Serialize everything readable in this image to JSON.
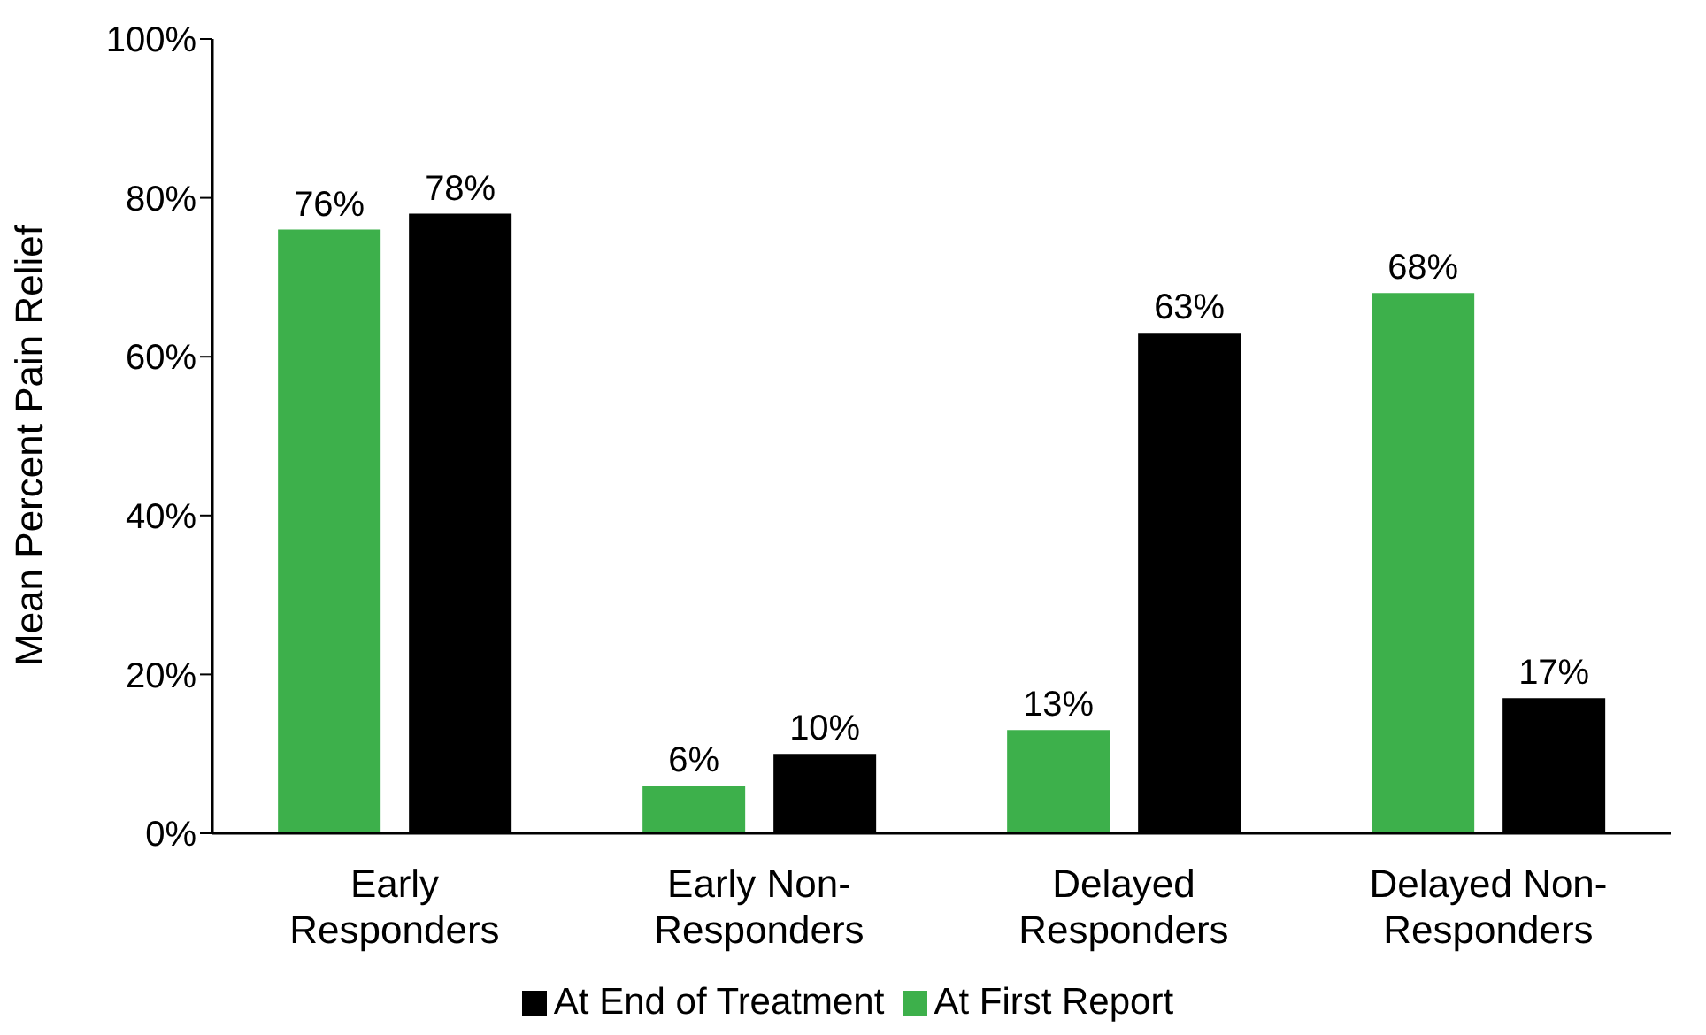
{
  "chart_data": {
    "type": "bar",
    "ylabel": "Mean Percent Pain Relief",
    "categories": [
      "Early Responders",
      "Early Non-Responders",
      "Delayed Responders",
      "Delayed Non-Responders"
    ],
    "series": [
      {
        "name": "At First Report",
        "color": "#3db04b",
        "values": [
          76,
          6,
          13,
          68
        ],
        "value_labels": [
          "76%",
          "6%",
          "13%",
          "68%"
        ]
      },
      {
        "name": "At End of Treatment",
        "color": "#000000",
        "values": [
          78,
          10,
          63,
          17
        ],
        "value_labels": [
          "78%",
          "10%",
          "63%",
          "17%"
        ]
      }
    ],
    "ylim": [
      0,
      100
    ],
    "yticks": [
      {
        "value": 0,
        "label": "0%"
      },
      {
        "value": 20,
        "label": "20%"
      },
      {
        "value": 40,
        "label": "40%"
      },
      {
        "value": 60,
        "label": "60%"
      },
      {
        "value": 80,
        "label": "80%"
      },
      {
        "value": 100,
        "label": "100%"
      }
    ],
    "grid": false,
    "legend": "bottom"
  }
}
